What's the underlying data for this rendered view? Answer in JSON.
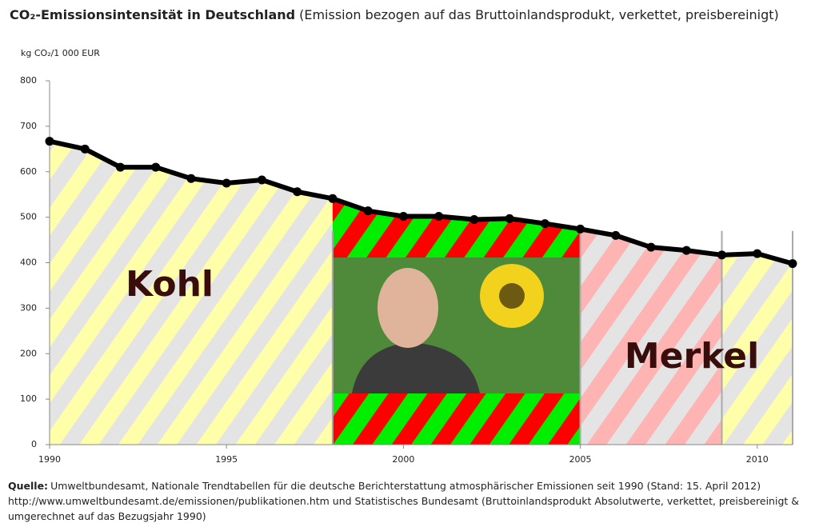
{
  "chart_data": {
    "type": "line",
    "title": "CO₂-Emissionsintensität in Deutschland",
    "subtitle": "(Emission bezogen auf das Bruttoinlandsprodukt, verkettet, preisbereinigt)",
    "y_label": "kg CO₂/1 000 EUR",
    "x": [
      1990,
      1991,
      1992,
      1993,
      1994,
      1995,
      1996,
      1997,
      1998,
      1999,
      2000,
      2001,
      2002,
      2003,
      2004,
      2005,
      2006,
      2007,
      2008,
      2009,
      2010,
      2011
    ],
    "series": [
      {
        "color": "#000000",
        "values": [
          667,
          650,
          610,
          610,
          585,
          575,
          582,
          556,
          541,
          514,
          502,
          502,
          495,
          497,
          486,
          474,
          460,
          434,
          427,
          417,
          420,
          398
        ]
      }
    ],
    "xlim": [
      1990,
      2011
    ],
    "xticks": [
      1990,
      1995,
      2000,
      2005,
      2010
    ],
    "ylim": [
      0,
      800
    ],
    "yticks": [
      0,
      100,
      200,
      300,
      400,
      500,
      600,
      700,
      800
    ],
    "periods": [
      {
        "start": 1990,
        "end": 1998,
        "colors": [
          "#ffffaa",
          "#e4e4e4"
        ],
        "label": "Kohl"
      },
      {
        "start": 1998,
        "end": 2005,
        "colors": [
          "#ff0000",
          "#00ee00"
        ]
      },
      {
        "start": 2005,
        "end": 2009,
        "colors": [
          "#ffb4b4",
          "#e4e4e4"
        ],
        "label": "Merkel"
      },
      {
        "start": 2009,
        "end": 2011,
        "colors": [
          "#ffffaa",
          "#e4e4e4"
        ]
      }
    ],
    "source_label": "Quelle:",
    "source_lines": [
      "Umweltbundesamt, Nationale Trendtabellen für die deutsche Berichterstattung atmosphärischer Emissionen seit 1990 (Stand: 15. April 2012)",
      "http://www.umweltbundesamt.de/emissionen/publikationen.htm und Statistisches Bundesamt (Bruttoinlandsprodukt Absolutwerte, verkettet, preisbereinigt &",
      "umgerechnet auf das Bezugsjahr 1990)"
    ]
  }
}
